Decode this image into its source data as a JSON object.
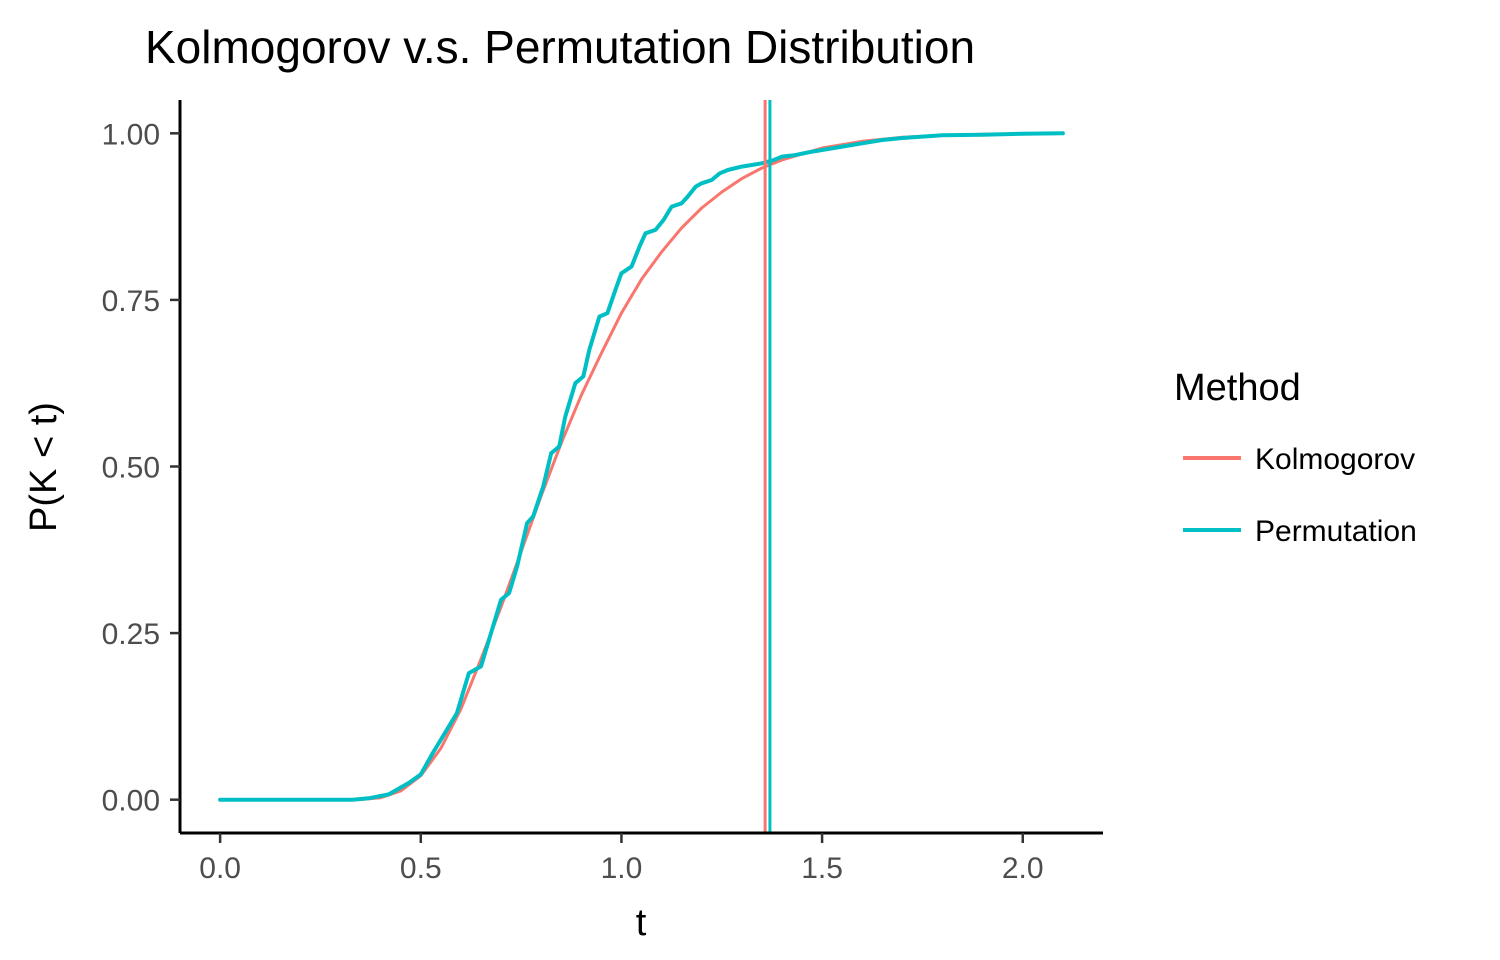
{
  "chart_data": {
    "type": "line",
    "title": "Kolmogorov v.s. Permutation Distribution",
    "xlabel": "t",
    "ylabel": "P(K < t)",
    "xlim": [
      -0.1,
      2.2
    ],
    "ylim": [
      -0.05,
      1.05
    ],
    "x_ticks": [
      "0.0",
      "0.5",
      "1.0",
      "1.5",
      "2.0"
    ],
    "y_ticks": [
      "0.00",
      "0.25",
      "0.50",
      "0.75",
      "1.00"
    ],
    "grid": false,
    "legend": {
      "title": "Method",
      "position": "right",
      "entries": [
        "Kolmogorov",
        "Permutation"
      ]
    },
    "vlines": [
      {
        "series": "Kolmogorov",
        "x": 1.358,
        "color": "#F8766D"
      },
      {
        "series": "Permutation",
        "x": 1.37,
        "color": "#00BFC4"
      }
    ],
    "series": [
      {
        "name": "Kolmogorov",
        "color": "#F8766D",
        "x": [
          0.0,
          0.3,
          0.35,
          0.4,
          0.45,
          0.5,
          0.55,
          0.6,
          0.65,
          0.7,
          0.75,
          0.8,
          0.85,
          0.9,
          0.95,
          1.0,
          1.05,
          1.1,
          1.15,
          1.2,
          1.25,
          1.3,
          1.35,
          1.4,
          1.5,
          1.6,
          1.7,
          1.8,
          1.9,
          2.0,
          2.1
        ],
        "y": [
          0.0,
          0.0,
          0.0003,
          0.003,
          0.013,
          0.036,
          0.077,
          0.136,
          0.211,
          0.289,
          0.372,
          0.456,
          0.535,
          0.607,
          0.67,
          0.73,
          0.781,
          0.822,
          0.858,
          0.888,
          0.912,
          0.932,
          0.948,
          0.96,
          0.978,
          0.988,
          0.994,
          0.997,
          0.9985,
          0.9993,
          0.9997
        ]
      },
      {
        "name": "Permutation",
        "color": "#00BFC4",
        "x": [
          0.0,
          0.33,
          0.37,
          0.42,
          0.47,
          0.5,
          0.53,
          0.56,
          0.59,
          0.62,
          0.65,
          0.67,
          0.7,
          0.72,
          0.74,
          0.765,
          0.78,
          0.805,
          0.825,
          0.845,
          0.86,
          0.885,
          0.905,
          0.92,
          0.945,
          0.965,
          0.985,
          1.0,
          1.025,
          1.045,
          1.06,
          1.085,
          1.105,
          1.125,
          1.15,
          1.165,
          1.185,
          1.2,
          1.225,
          1.245,
          1.265,
          1.3,
          1.33,
          1.35,
          1.38,
          1.4,
          1.43,
          1.47,
          1.5,
          1.55,
          1.6,
          1.65,
          1.7,
          1.8,
          1.9,
          2.0,
          2.1
        ],
        "y": [
          0.0,
          0.0,
          0.002,
          0.008,
          0.025,
          0.038,
          0.07,
          0.1,
          0.13,
          0.19,
          0.2,
          0.24,
          0.3,
          0.31,
          0.35,
          0.415,
          0.425,
          0.47,
          0.52,
          0.53,
          0.575,
          0.625,
          0.635,
          0.675,
          0.725,
          0.73,
          0.765,
          0.79,
          0.8,
          0.83,
          0.85,
          0.855,
          0.87,
          0.89,
          0.895,
          0.905,
          0.92,
          0.925,
          0.93,
          0.94,
          0.945,
          0.95,
          0.953,
          0.955,
          0.96,
          0.965,
          0.967,
          0.972,
          0.975,
          0.98,
          0.985,
          0.99,
          0.993,
          0.997,
          0.998,
          0.9995,
          1.0
        ]
      }
    ]
  }
}
